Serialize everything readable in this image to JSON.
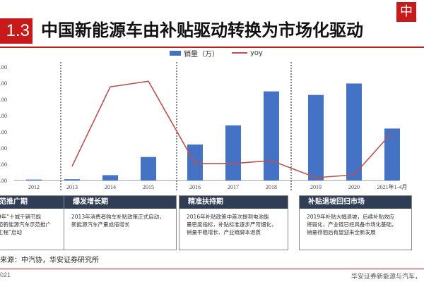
{
  "header": {
    "section_number": "1.3",
    "title": "中国新能源车由补贴驱动转换为市场化驱动",
    "logo_glyph": "中"
  },
  "colors": {
    "accent": "#c8191b",
    "bar": "#4472c4",
    "line": "#c0504d",
    "box_header": "#2f3e55"
  },
  "chart_data": {
    "type": "bar",
    "categories": [
      "2012",
      "2013",
      "2014",
      "2015",
      "2016",
      "2017",
      "2018",
      "2019",
      "2020",
      "2021年1-4月"
    ],
    "series": [
      {
        "name": "销量（万）",
        "type": "bar",
        "values": [
          1.3,
          1.8,
          7.5,
          33.1,
          50.7,
          77.7,
          125.6,
          120.6,
          136.7,
          73.2
        ]
      },
      {
        "name": "yoy",
        "type": "line",
        "axis": "right",
        "values": [
          null,
          0.4,
          3.2,
          3.4,
          0.5,
          0.5,
          0.6,
          0.0,
          0.1,
          1.6
        ]
      }
    ],
    "y_tick_labels": [
      ".00",
      ".00",
      ".00",
      ".00",
      ".00",
      ".00",
      ".00",
      ".00"
    ],
    "legend": "top-center"
  },
  "periods": [
    {
      "title": "范推广期",
      "desc": "9年“十城千辆节能\n范新能源汽车示范推广\n工程”启动"
    },
    {
      "title": "爆发增长期",
      "desc": "2013年消费者购车补贴政策正式启动，\n新能源汽车产量成倍增长"
    },
    {
      "title": "精准扶持期",
      "desc": "2016年补贴政策中首次提到电池能\n量密度指标，补贴标准逐步严苛细化，\n销量平稳增长、产业链脚本退质"
    },
    {
      "title": "补贴退坡回归市场",
      "desc": "2019年补贴大幅退坡，后续补贴效应\n将弱化，产业链已经具备市场化基础，\n销量徘徊后有望迎来全新发展"
    }
  ],
  "source_text": "来源：中汽协，华安证券研究所",
  "footer": {
    "left": "021",
    "right": "华安证券新能源与汽车，"
  }
}
